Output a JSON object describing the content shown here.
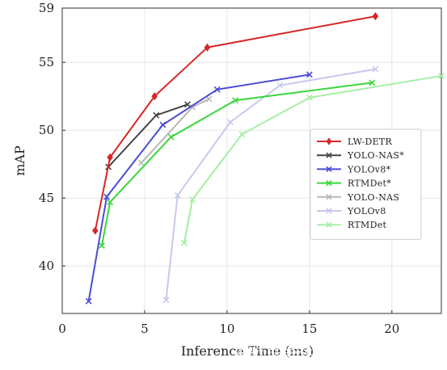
{
  "chart_data": {
    "type": "line",
    "title": "",
    "xlabel": "Inference Time (ms)",
    "ylabel": "mAP",
    "xlim": [
      0,
      23
    ],
    "ylim": [
      36.5,
      59
    ],
    "xticks": [
      0,
      5,
      10,
      15,
      20
    ],
    "yticks": [
      40,
      45,
      50,
      55,
      59
    ],
    "grid": true,
    "legend_position": "right",
    "series": [
      {
        "name": "LW-DETR",
        "color": "#d62728",
        "marker": "diamond",
        "x": [
          2.0,
          2.9,
          5.6,
          8.8,
          19.0
        ],
        "y": [
          42.6,
          48.0,
          52.5,
          56.1,
          58.4
        ]
      },
      {
        "name": "YOLO-NAS*",
        "color": "#444444",
        "marker": "x",
        "x": [
          2.8,
          5.7,
          7.6
        ],
        "y": [
          47.3,
          51.1,
          51.9
        ]
      },
      {
        "name": "YOLOv8*",
        "color": "#4b4bd6",
        "marker": "x",
        "x": [
          1.6,
          2.7,
          6.1,
          9.4,
          15.0
        ],
        "y": [
          37.4,
          45.1,
          50.4,
          53.0,
          54.1
        ]
      },
      {
        "name": "RTMDet*",
        "color": "#3ad63a",
        "marker": "x",
        "x": [
          2.4,
          2.9,
          6.6,
          10.5,
          18.8
        ],
        "y": [
          41.5,
          44.7,
          49.5,
          52.2,
          53.5
        ]
      },
      {
        "name": "YOLO-NAS",
        "color": "#b8b8b8",
        "marker": "x",
        "x": [
          4.8,
          7.9,
          8.9
        ],
        "y": [
          47.6,
          51.7,
          52.3
        ]
      },
      {
        "name": "YOLOv8",
        "color": "#c8c8ee",
        "marker": "x",
        "x": [
          6.3,
          7.0,
          10.2,
          13.2,
          19.0
        ],
        "y": [
          37.5,
          45.2,
          50.6,
          53.3,
          54.5
        ]
      },
      {
        "name": "RTMDet",
        "color": "#a6eea6",
        "marker": "x",
        "x": [
          7.4,
          7.9,
          10.9,
          15.0,
          23.0
        ],
        "y": [
          41.7,
          44.9,
          49.7,
          52.4,
          54.0
        ]
      }
    ]
  },
  "watermark": "@稀土掘金技术社区 @ CoovallyAIHub"
}
